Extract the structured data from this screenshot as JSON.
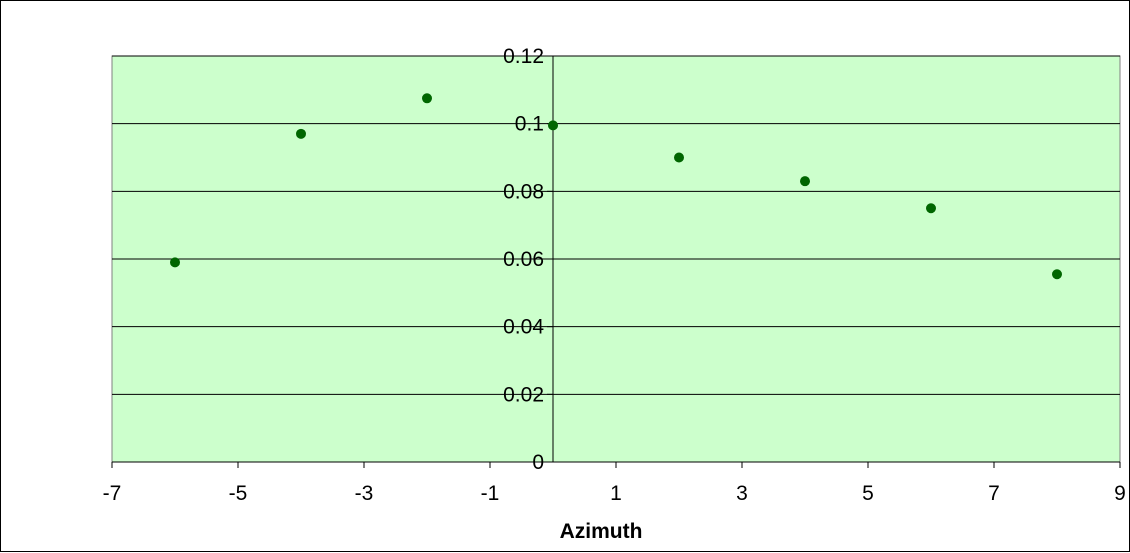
{
  "chart_data": {
    "type": "scatter",
    "title": "",
    "xlabel": "Azimuth",
    "ylabel": "",
    "xlim": [
      -7,
      9
    ],
    "ylim": [
      0,
      0.12
    ],
    "x_ticks": [
      -7,
      -5,
      -3,
      -1,
      1,
      3,
      5,
      7,
      9
    ],
    "x_tick_labels": [
      "-7",
      "-5",
      "-3",
      "-1",
      "1",
      "3",
      "5",
      "7",
      "9"
    ],
    "y_ticks": [
      0,
      0.02,
      0.04,
      0.06,
      0.08,
      0.1,
      0.12
    ],
    "y_tick_labels": [
      "0",
      "0.02",
      "0.04",
      "0.06",
      "0.08",
      "0.1",
      "0.12"
    ],
    "grid": "horizontal",
    "legend": "none",
    "series": [
      {
        "x": [
          -6,
          -4,
          -2,
          0,
          2,
          4,
          6,
          8
        ],
        "y": [
          0.059,
          0.097,
          0.1075,
          0.0995,
          0.09,
          0.083,
          0.075,
          0.0555
        ]
      }
    ],
    "colors": {
      "plot_background": "#ccffcc",
      "marker": "#006600",
      "gridline": "#000000"
    }
  }
}
